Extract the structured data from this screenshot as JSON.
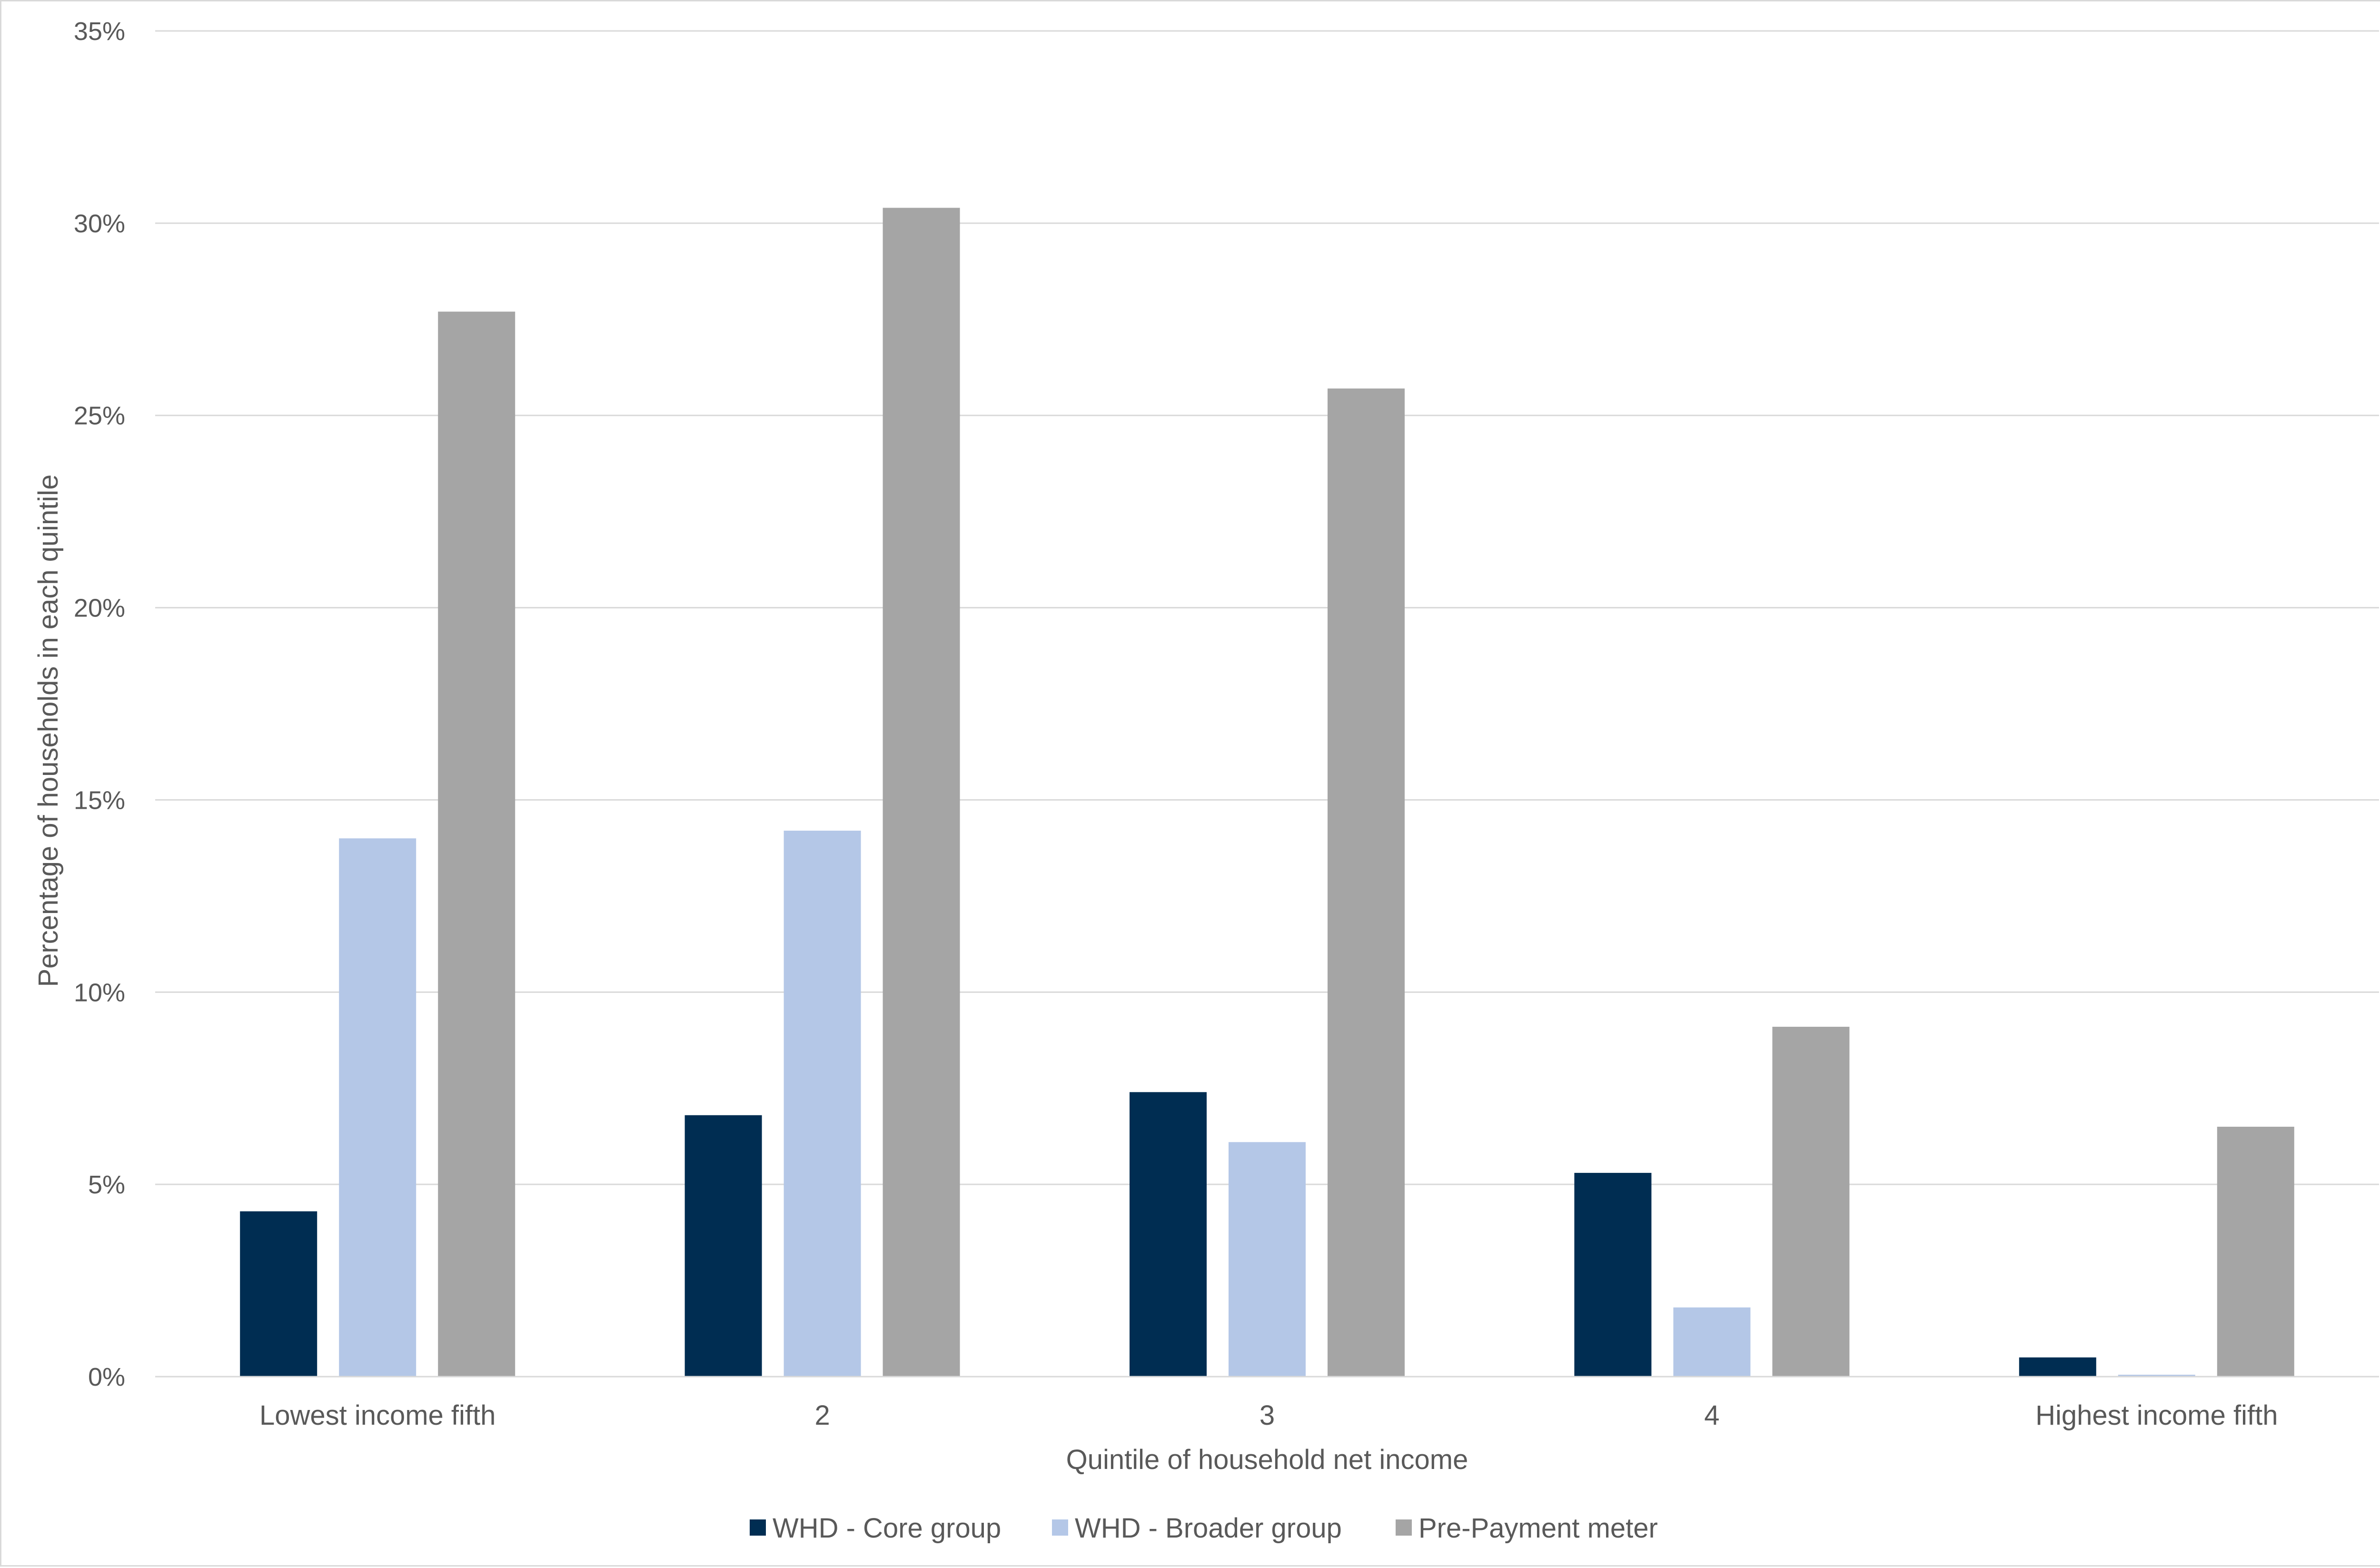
{
  "chart_data": {
    "type": "bar",
    "title": "",
    "xlabel": "Quintile of household net income",
    "ylabel": "Percentage of households in each quintile",
    "categories": [
      "Lowest income fifth",
      "2",
      "3",
      "4",
      "Highest income fifth"
    ],
    "series": [
      {
        "name": "WHD - Core group",
        "color": "#002D52",
        "values": [
          4.3,
          6.8,
          7.4,
          5.3,
          0.5
        ]
      },
      {
        "name": "WHD - Broader group",
        "color": "#B4C7E7",
        "values": [
          14.0,
          14.2,
          6.1,
          1.8,
          0.05
        ]
      },
      {
        "name": "Pre-Payment meter",
        "color": "#A5A5A5",
        "values": [
          27.7,
          30.4,
          25.7,
          9.1,
          6.5
        ]
      }
    ],
    "ylim": [
      0,
      35
    ],
    "yticks": [
      "0%",
      "5%",
      "10%",
      "15%",
      "20%",
      "25%",
      "30%",
      "35%"
    ],
    "grid": true,
    "legend_position": "bottom"
  }
}
